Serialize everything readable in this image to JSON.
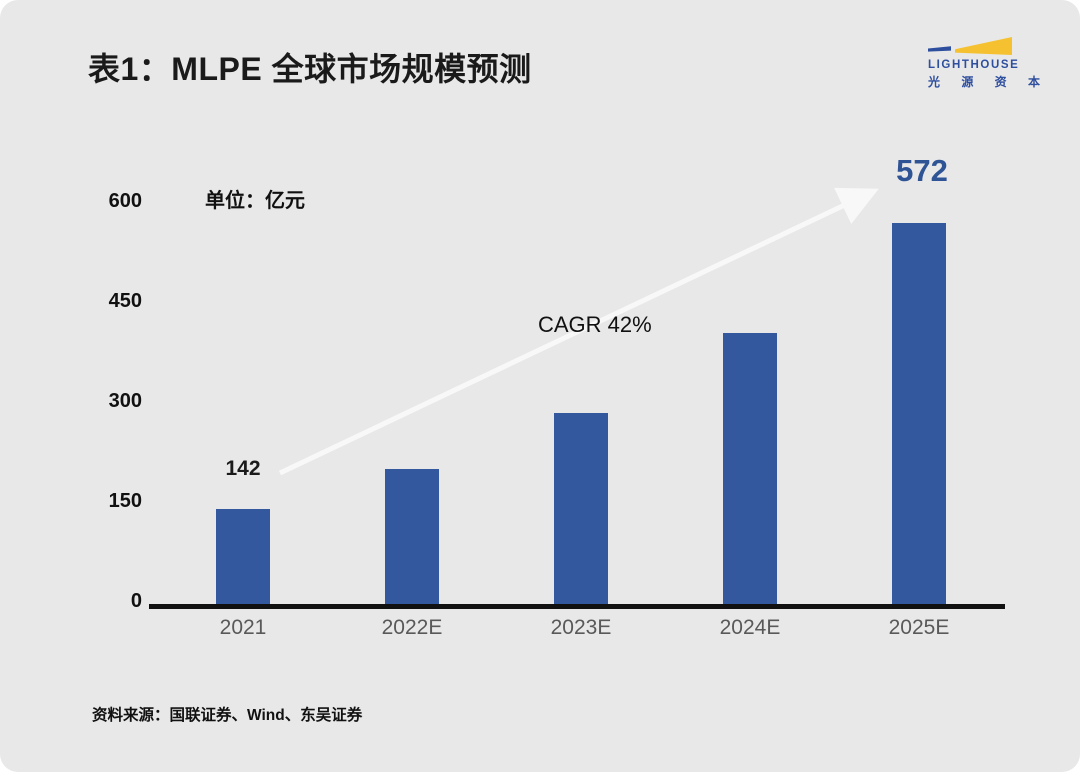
{
  "page": {
    "card_background": "#E8E8E8",
    "outer_background": "#FFFFFF"
  },
  "header": {
    "title": "表1：MLPE 全球市场规模预测",
    "logo": {
      "name": "LIGHTHOUSE",
      "cn_name": "光 源 资 本",
      "blue": "#2E4E9E",
      "yellow": "#F5C131"
    }
  },
  "chart_data": {
    "type": "bar",
    "title": "表1：MLPE 全球市场规模预测",
    "unit_label": "单位：亿元",
    "categories": [
      "2021",
      "2022E",
      "2023E",
      "2024E",
      "2025E"
    ],
    "values": [
      142,
      202,
      286,
      406,
      572
    ],
    "yticks": [
      600,
      450,
      300,
      150,
      0
    ],
    "ylim": [
      0,
      650
    ],
    "grid": false,
    "legend": "none",
    "bar_color": "#33589E",
    "point_labels": [
      {
        "index": 0,
        "text": "142",
        "style": "plain"
      },
      {
        "index": 4,
        "text": "572",
        "style": "highlight"
      }
    ],
    "annotation": {
      "text": "CAGR 42%"
    },
    "arrow_color": "#F8F8F8"
  },
  "footer": {
    "source": "资料来源：国联证券、Wind、东吴证券"
  }
}
